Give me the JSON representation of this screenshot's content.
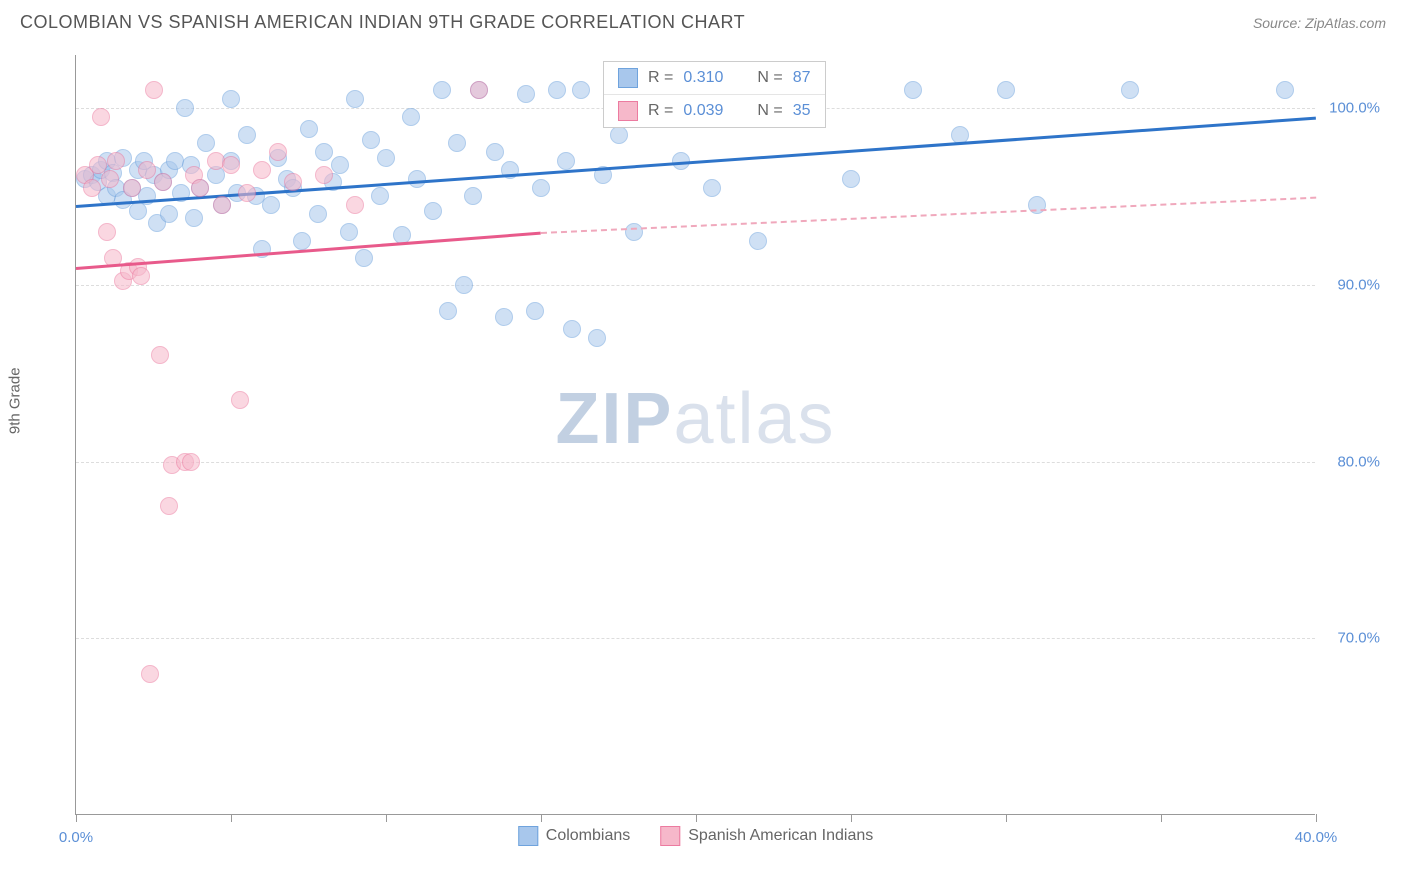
{
  "title": "COLOMBIAN VS SPANISH AMERICAN INDIAN 9TH GRADE CORRELATION CHART",
  "source_label": "Source:",
  "source_name": "ZipAtlas.com",
  "y_axis_label": "9th Grade",
  "watermark_a": "ZIP",
  "watermark_b": "atlas",
  "chart": {
    "type": "scatter",
    "xlim": [
      0,
      40
    ],
    "ylim": [
      60,
      103
    ],
    "x_ticks": [
      0,
      5,
      10,
      15,
      20,
      25,
      30,
      35,
      40
    ],
    "x_tick_labels": {
      "0": "0.0%",
      "40": "40.0%"
    },
    "y_ticks": [
      70,
      80,
      90,
      100
    ],
    "y_tick_labels": {
      "70": "70.0%",
      "80": "80.0%",
      "90": "90.0%",
      "100": "100.0%"
    },
    "background_color": "#ffffff",
    "grid_color": "#dddddd",
    "axis_color": "#999999",
    "series": [
      {
        "name_key": "Colombians",
        "color_fill": "#a8c7ec",
        "color_stroke": "#6fa3dd",
        "r_label": "R =",
        "r_value": "0.310",
        "n_label": "N =",
        "n_value": "87",
        "trend": {
          "x1": 0,
          "y1": 94.5,
          "x2": 40,
          "y2": 99.5,
          "color": "#2e74c9",
          "width": 3
        },
        "points": [
          [
            0.3,
            96
          ],
          [
            0.5,
            96.2
          ],
          [
            0.7,
            95.8
          ],
          [
            0.8,
            96.5
          ],
          [
            1,
            97
          ],
          [
            1,
            95
          ],
          [
            1.2,
            96.3
          ],
          [
            1.3,
            95.5
          ],
          [
            1.5,
            97.2
          ],
          [
            1.5,
            94.8
          ],
          [
            1.8,
            95.5
          ],
          [
            2,
            96.5
          ],
          [
            2,
            94.2
          ],
          [
            2.2,
            97
          ],
          [
            2.3,
            95
          ],
          [
            2.5,
            96.2
          ],
          [
            2.6,
            93.5
          ],
          [
            2.8,
            95.8
          ],
          [
            3,
            96.5
          ],
          [
            3,
            94
          ],
          [
            3.2,
            97
          ],
          [
            3.4,
            95.2
          ],
          [
            3.5,
            100
          ],
          [
            3.7,
            96.8
          ],
          [
            3.8,
            93.8
          ],
          [
            4,
            95.5
          ],
          [
            4.2,
            98
          ],
          [
            4.5,
            96.2
          ],
          [
            4.7,
            94.5
          ],
          [
            5,
            97
          ],
          [
            5,
            100.5
          ],
          [
            5.2,
            95.2
          ],
          [
            5.5,
            98.5
          ],
          [
            5.8,
            95
          ],
          [
            6,
            92
          ],
          [
            6.3,
            94.5
          ],
          [
            6.5,
            97.2
          ],
          [
            6.8,
            96
          ],
          [
            7,
            95.5
          ],
          [
            7.3,
            92.5
          ],
          [
            7.5,
            98.8
          ],
          [
            7.8,
            94
          ],
          [
            8,
            97.5
          ],
          [
            8.3,
            95.8
          ],
          [
            8.5,
            96.8
          ],
          [
            8.8,
            93
          ],
          [
            9,
            100.5
          ],
          [
            9.3,
            91.5
          ],
          [
            9.5,
            98.2
          ],
          [
            9.8,
            95
          ],
          [
            10,
            97.2
          ],
          [
            10.5,
            92.8
          ],
          [
            10.8,
            99.5
          ],
          [
            11,
            96
          ],
          [
            11.5,
            94.2
          ],
          [
            11.8,
            101
          ],
          [
            12,
            88.5
          ],
          [
            12.3,
            98
          ],
          [
            12.5,
            90
          ],
          [
            12.8,
            95
          ],
          [
            13,
            101
          ],
          [
            13.5,
            97.5
          ],
          [
            13.8,
            88.2
          ],
          [
            14,
            96.5
          ],
          [
            14.5,
            100.8
          ],
          [
            14.8,
            88.5
          ],
          [
            15,
            95.5
          ],
          [
            15.5,
            101
          ],
          [
            15.8,
            97
          ],
          [
            16,
            87.5
          ],
          [
            16.3,
            101
          ],
          [
            16.8,
            87
          ],
          [
            17,
            96.2
          ],
          [
            17.5,
            98.5
          ],
          [
            18,
            93
          ],
          [
            18.8,
            100.5
          ],
          [
            19.5,
            97
          ],
          [
            20.5,
            95.5
          ],
          [
            22,
            92.5
          ],
          [
            23,
            101
          ],
          [
            25,
            96
          ],
          [
            27,
            101
          ],
          [
            28.5,
            98.5
          ],
          [
            30,
            101
          ],
          [
            31,
            94.5
          ],
          [
            34,
            101
          ],
          [
            39,
            101
          ]
        ]
      },
      {
        "name_key": "Spanish American Indians",
        "color_fill": "#f6b8ca",
        "color_stroke": "#ec7ba0",
        "r_label": "R =",
        "r_value": "0.039",
        "n_label": "N =",
        "n_value": "35",
        "trend": {
          "x1": 0,
          "y1": 91,
          "x2": 15,
          "y2": 93,
          "color": "#e85a8b",
          "width": 3
        },
        "trend_dash": {
          "x1": 15,
          "y1": 93,
          "x2": 40,
          "y2": 95,
          "color": "#f0a8bc",
          "width": 2
        },
        "points": [
          [
            0.3,
            96.2
          ],
          [
            0.5,
            95.5
          ],
          [
            0.7,
            96.8
          ],
          [
            0.8,
            99.5
          ],
          [
            1,
            93
          ],
          [
            1.1,
            96
          ],
          [
            1.2,
            91.5
          ],
          [
            1.3,
            97
          ],
          [
            1.5,
            90.2
          ],
          [
            1.7,
            90.8
          ],
          [
            1.8,
            95.5
          ],
          [
            2,
            91
          ],
          [
            2.1,
            90.5
          ],
          [
            2.3,
            96.5
          ],
          [
            2.4,
            68
          ],
          [
            2.5,
            101
          ],
          [
            2.7,
            86
          ],
          [
            2.8,
            95.8
          ],
          [
            3,
            77.5
          ],
          [
            3.1,
            79.8
          ],
          [
            3.5,
            80
          ],
          [
            3.7,
            80
          ],
          [
            3.8,
            96.2
          ],
          [
            4,
            95.5
          ],
          [
            4.5,
            97
          ],
          [
            4.7,
            94.5
          ],
          [
            5,
            96.8
          ],
          [
            5.3,
            83.5
          ],
          [
            5.5,
            95.2
          ],
          [
            6,
            96.5
          ],
          [
            6.5,
            97.5
          ],
          [
            7,
            95.8
          ],
          [
            8,
            96.2
          ],
          [
            9,
            94.5
          ],
          [
            13,
            101
          ]
        ]
      }
    ]
  },
  "legend_bottom": [
    {
      "label": "Colombians",
      "fill": "#a8c7ec",
      "stroke": "#6fa3dd"
    },
    {
      "label": "Spanish American Indians",
      "fill": "#f6b8ca",
      "stroke": "#ec7ba0"
    }
  ]
}
